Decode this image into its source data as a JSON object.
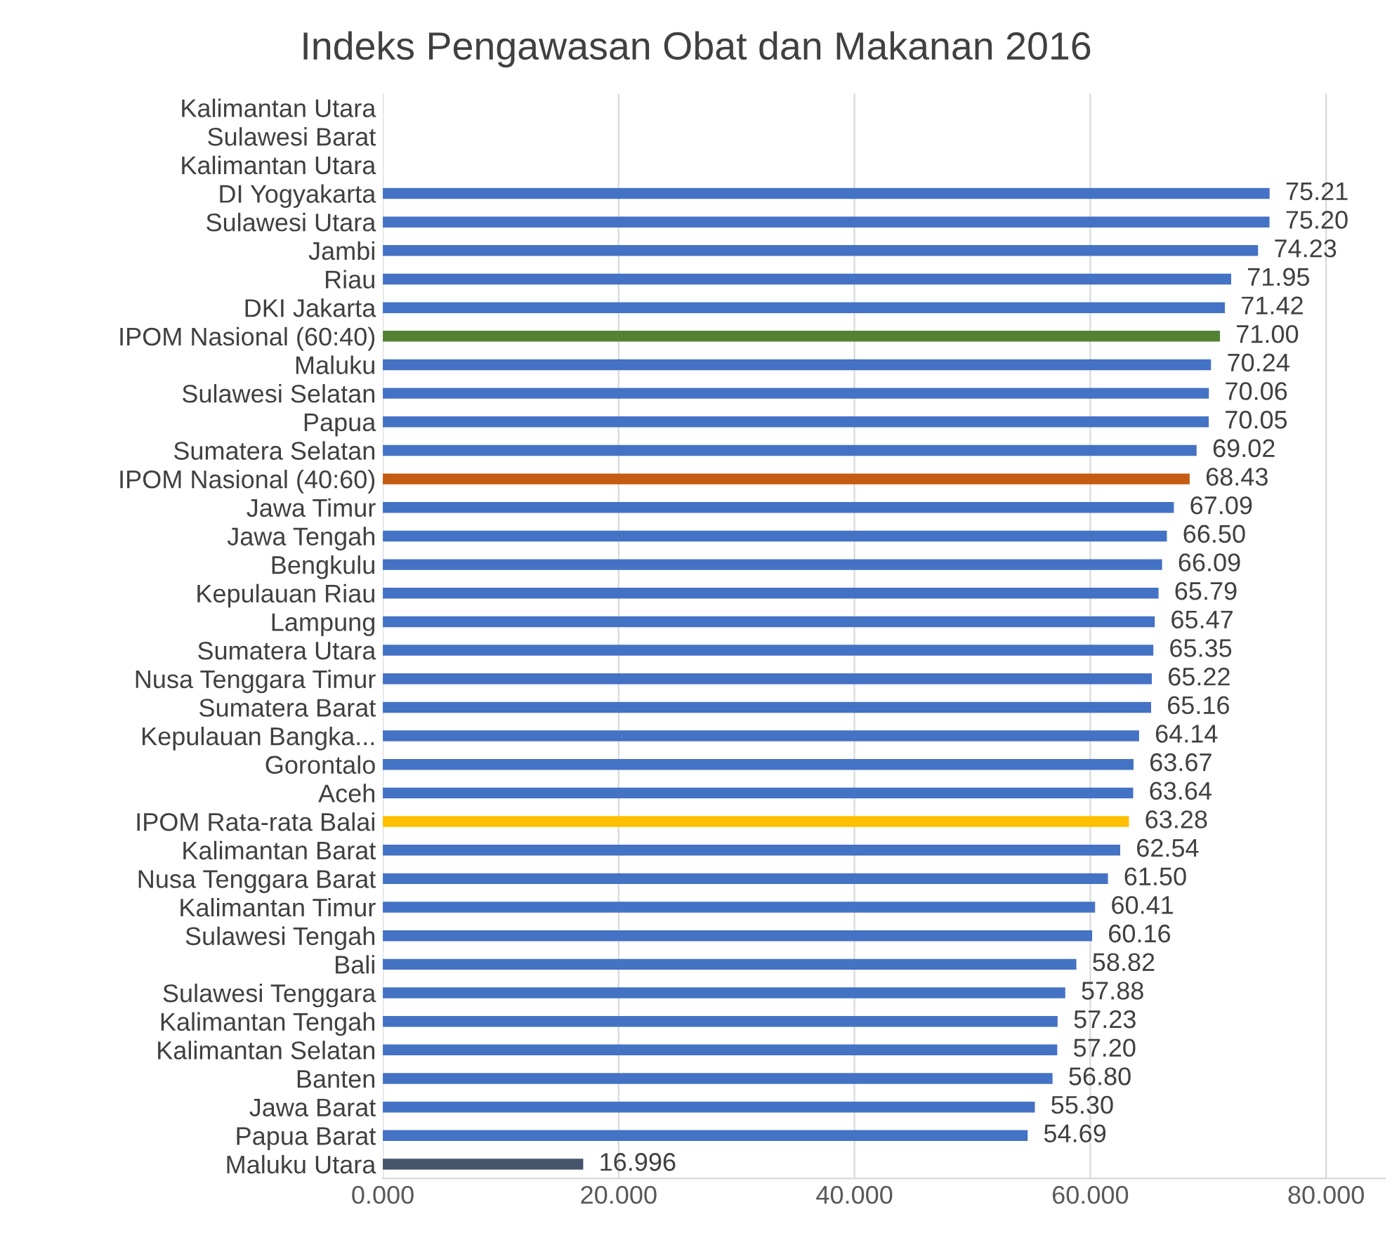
{
  "chart_data": {
    "type": "bar",
    "orientation": "horizontal",
    "title": "Indeks Pengawasan Obat dan Makanan 2016",
    "categories": [
      "Kalimantan Utara",
      "Sulawesi Barat",
      "Kalimantan Utara",
      "DI Yogyakarta",
      "Sulawesi Utara",
      "Jambi",
      "Riau",
      "DKI Jakarta",
      "IPOM Nasional (60:40)",
      "Maluku",
      "Sulawesi Selatan",
      "Papua",
      "Sumatera Selatan",
      "IPOM Nasional (40:60)",
      "Jawa Timur",
      "Jawa Tengah",
      "Bengkulu",
      "Kepulauan Riau",
      "Lampung",
      "Sumatera Utara",
      "Nusa Tenggara Timur",
      "Sumatera Barat",
      "Kepulauan Bangka...",
      "Gorontalo",
      "Aceh",
      "IPOM Rata-rata Balai",
      "Kalimantan Barat",
      "Nusa Tenggara Barat",
      "Kalimantan Timur",
      "Sulawesi Tengah",
      "Bali",
      "Sulawesi Tenggara",
      "Kalimantan Tengah",
      "Kalimantan Selatan",
      "Banten",
      "Jawa Barat",
      "Papua Barat",
      "Maluku Utara"
    ],
    "values": [
      null,
      null,
      null,
      75.21,
      75.2,
      74.23,
      71.95,
      71.42,
      71.0,
      70.24,
      70.06,
      70.05,
      69.02,
      68.43,
      67.09,
      66.5,
      66.09,
      65.79,
      65.47,
      65.35,
      65.22,
      65.16,
      64.14,
      63.67,
      63.64,
      63.28,
      62.54,
      61.5,
      60.41,
      60.16,
      58.82,
      57.88,
      57.23,
      57.2,
      56.8,
      55.3,
      54.69,
      16.996
    ],
    "value_labels": [
      null,
      null,
      null,
      "75.21",
      "75.20",
      "74.23",
      "71.95",
      "71.42",
      "71.00",
      "70.24",
      "70.06",
      "70.05",
      "69.02",
      "68.43",
      "67.09",
      "66.50",
      "66.09",
      "65.79",
      "65.47",
      "65.35",
      "65.22",
      "65.16",
      "64.14",
      "63.67",
      "63.64",
      "63.28",
      "62.54",
      "61.50",
      "60.41",
      "60.16",
      "58.82",
      "57.88",
      "57.23",
      "57.20",
      "56.80",
      "55.30",
      "54.69",
      "16.996"
    ],
    "colors": [
      "#4472c4",
      "#4472c4",
      "#4472c4",
      "#4472c4",
      "#4472c4",
      "#4472c4",
      "#4472c4",
      "#4472c4",
      "#548235",
      "#4472c4",
      "#4472c4",
      "#4472c4",
      "#4472c4",
      "#c55a11",
      "#4472c4",
      "#4472c4",
      "#4472c4",
      "#4472c4",
      "#4472c4",
      "#4472c4",
      "#4472c4",
      "#4472c4",
      "#4472c4",
      "#4472c4",
      "#4472c4",
      "#ffc000",
      "#4472c4",
      "#4472c4",
      "#4472c4",
      "#4472c4",
      "#4472c4",
      "#4472c4",
      "#4472c4",
      "#4472c4",
      "#4472c4",
      "#4472c4",
      "#4472c4",
      "#44546a"
    ],
    "xlim": [
      0,
      85
    ],
    "xticks": [
      {
        "value": 0,
        "label": "0.000"
      },
      {
        "value": 20,
        "label": "20.000"
      },
      {
        "value": 40,
        "label": "40.000"
      },
      {
        "value": 60,
        "label": "60.000"
      },
      {
        "value": 80,
        "label": "80.000"
      }
    ],
    "grid": "x",
    "legend": false
  }
}
